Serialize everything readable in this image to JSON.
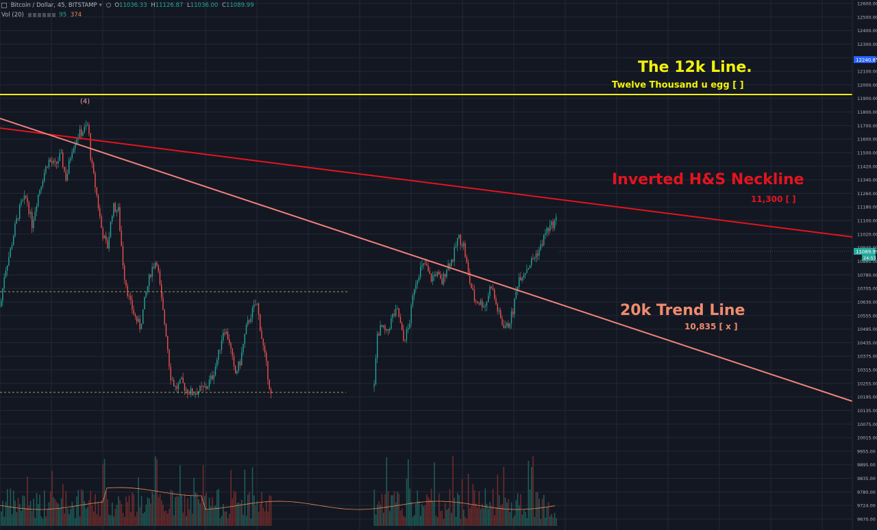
{
  "header": {
    "symbol": "Bitcoin / Dollar, 45, BITSTAMP",
    "dropdown_glyph": "▾",
    "o_label": "O",
    "o_value": "11036.33",
    "h_label": "H",
    "h_value": "11126.87",
    "l_label": "L",
    "l_value": "11036.00",
    "c_label": "C",
    "c_value": "11089.99",
    "vol_label": "Vol (20)",
    "vol_a": "95",
    "vol_b": "374"
  },
  "annotations": {
    "twelve_k_title": "The 12k Line.",
    "twelve_k_sub": "Twelve Thousand u egg [  ]",
    "neckline_title": "Inverted H&S Neckline",
    "neckline_value": "11,300 [  ]",
    "trend_title": "20k Trend Line",
    "trend_value": "10,835 [ x ]",
    "wave_label": "(4)"
  },
  "price_tags": {
    "current": "11089.99",
    "countdown": "24:53",
    "hi_mark": "12240.85"
  },
  "colors": {
    "background": "#131722",
    "up": "#26a69a",
    "down": "#ef5350",
    "twelve_k": "#f2f20a",
    "neckline": "#e4141e",
    "trendline": "#f0827d",
    "trend_text": "#f08c6e",
    "grid": "#232838"
  },
  "chart_data": {
    "type": "candlestick",
    "symbol": "Bitcoin / Dollar",
    "interval": "45",
    "exchange": "BITSTAMP",
    "price_axis_ticks": [
      12600,
      12500,
      12400,
      12300,
      12200,
      12100,
      12000,
      11900,
      11800,
      11700,
      11600,
      11500,
      11420,
      11340,
      11260,
      11180,
      11100,
      11020,
      10940,
      10860,
      10780,
      10705,
      10630,
      10555,
      10495,
      10435,
      10375,
      10315,
      10255,
      10195,
      10135,
      10075,
      10015,
      9955,
      9895,
      9835,
      9780,
      9724,
      9670
    ],
    "levels": [
      {
        "name": "The 12k Line.",
        "price": 12000
      },
      {
        "name": "Inverted H&S Neckline",
        "price": 11300
      },
      {
        "name": "20k Trend Line",
        "price": 10835
      }
    ],
    "price_path": [
      [
        0,
        10450
      ],
      [
        6,
        10700
      ],
      [
        14,
        10850
      ],
      [
        22,
        11050
      ],
      [
        30,
        11200
      ],
      [
        38,
        11250
      ],
      [
        46,
        11050
      ],
      [
        54,
        11250
      ],
      [
        62,
        11400
      ],
      [
        70,
        11520
      ],
      [
        80,
        11480
      ],
      [
        88,
        11560
      ],
      [
        96,
        11380
      ],
      [
        104,
        11600
      ],
      [
        112,
        11700
      ],
      [
        122,
        11740
      ],
      [
        128,
        11780
      ],
      [
        132,
        11520
      ],
      [
        140,
        11280
      ],
      [
        148,
        11000
      ],
      [
        156,
        10880
      ],
      [
        164,
        11180
      ],
      [
        172,
        11150
      ],
      [
        180,
        10700
      ],
      [
        188,
        10500
      ],
      [
        196,
        10380
      ],
      [
        204,
        10300
      ],
      [
        212,
        10540
      ],
      [
        220,
        10720
      ],
      [
        228,
        10800
      ],
      [
        236,
        10450
      ],
      [
        242,
        10250
      ],
      [
        248,
        9950
      ],
      [
        256,
        9850
      ],
      [
        264,
        9900
      ],
      [
        272,
        9840
      ],
      [
        280,
        9820
      ],
      [
        290,
        9840
      ],
      [
        300,
        9860
      ],
      [
        310,
        9950
      ],
      [
        318,
        10100
      ],
      [
        326,
        10300
      ],
      [
        334,
        10200
      ],
      [
        342,
        9950
      ],
      [
        350,
        10050
      ],
      [
        358,
        10280
      ],
      [
        366,
        10400
      ],
      [
        374,
        10480
      ],
      [
        382,
        10200
      ],
      [
        390,
        9960
      ],
      [
        396,
        9760
      ],
      [
        545,
        9820
      ],
      [
        550,
        10250
      ],
      [
        556,
        10300
      ],
      [
        564,
        10250
      ],
      [
        572,
        10380
      ],
      [
        580,
        10420
      ],
      [
        588,
        10200
      ],
      [
        596,
        10300
      ],
      [
        604,
        10600
      ],
      [
        612,
        10720
      ],
      [
        620,
        10760
      ],
      [
        628,
        10650
      ],
      [
        636,
        10700
      ],
      [
        644,
        10620
      ],
      [
        652,
        10750
      ],
      [
        660,
        10800
      ],
      [
        668,
        10960
      ],
      [
        676,
        10900
      ],
      [
        684,
        10650
      ],
      [
        692,
        10500
      ],
      [
        700,
        10480
      ],
      [
        708,
        10460
      ],
      [
        716,
        10620
      ],
      [
        724,
        10450
      ],
      [
        732,
        10330
      ],
      [
        740,
        10300
      ],
      [
        748,
        10420
      ],
      [
        756,
        10660
      ],
      [
        764,
        10700
      ],
      [
        772,
        10760
      ],
      [
        780,
        10820
      ],
      [
        788,
        10880
      ],
      [
        796,
        11000
      ],
      [
        804,
        11040
      ],
      [
        812,
        11090
      ]
    ]
  }
}
